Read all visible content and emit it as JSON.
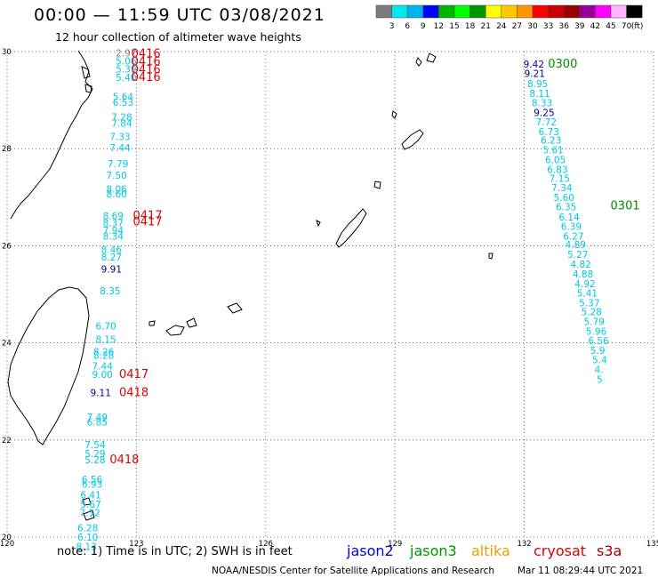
{
  "header": {
    "title": "00:00 — 11:59 UTC 03/08/2021",
    "subtitle": "12 hour collection of altimeter wave heights"
  },
  "legend": {
    "colors": [
      "#7a7a7a",
      "#00e8e8",
      "#00b4f0",
      "#0000ff",
      "#00b400",
      "#00ff00",
      "#009600",
      "#ffff00",
      "#ffc800",
      "#ff9600",
      "#ff0000",
      "#c80000",
      "#960000",
      "#960096",
      "#ff00ff",
      "#ffb4ff",
      "#000000"
    ],
    "labels": [
      "3",
      "6",
      "9",
      "12",
      "15",
      "18",
      "21",
      "24",
      "27",
      "30",
      "33",
      "36",
      "39",
      "42",
      "45",
      "70"
    ],
    "unit": "(ft)"
  },
  "axes": {
    "lon_ticks": [
      "120",
      "123",
      "126",
      "129",
      "132",
      "135"
    ],
    "lat_ticks": [
      "30",
      "28",
      "26",
      "24",
      "22",
      "20"
    ]
  },
  "palette": {
    "cyan": "#00c8e6",
    "navy": "#0000a0",
    "red": "#e00000",
    "green": "#008c00",
    "orange": "#e6a000",
    "darkred": "#aa0000"
  },
  "observations": [
    {
      "lat": 29.9,
      "lon": 122.52,
      "v": "2.97",
      "c": "gray"
    },
    {
      "lat": 29.73,
      "lon": 122.52,
      "v": "5.06",
      "c": "cyan"
    },
    {
      "lat": 29.57,
      "lon": 122.52,
      "v": "5.39",
      "c": "cyan"
    },
    {
      "lat": 29.4,
      "lon": 122.52,
      "v": "5.40",
      "c": "cyan"
    },
    {
      "lat": 29.0,
      "lon": 122.45,
      "v": "5.64",
      "c": "cyan"
    },
    {
      "lat": 28.88,
      "lon": 122.45,
      "v": "6.53",
      "c": "cyan"
    },
    {
      "lat": 28.58,
      "lon": 122.42,
      "v": "7.28",
      "c": "cyan"
    },
    {
      "lat": 28.45,
      "lon": 122.42,
      "v": "7.84",
      "c": "cyan"
    },
    {
      "lat": 28.18,
      "lon": 122.38,
      "v": "7.33",
      "c": "cyan"
    },
    {
      "lat": 27.95,
      "lon": 122.38,
      "v": "7.44",
      "c": "cyan"
    },
    {
      "lat": 27.62,
      "lon": 122.33,
      "v": "7.79",
      "c": "cyan"
    },
    {
      "lat": 27.38,
      "lon": 122.3,
      "v": "7.50",
      "c": "cyan"
    },
    {
      "lat": 27.1,
      "lon": 122.3,
      "v": "8.06",
      "c": "cyan"
    },
    {
      "lat": 27.0,
      "lon": 122.3,
      "v": "8.60",
      "c": "cyan"
    },
    {
      "lat": 26.55,
      "lon": 122.22,
      "v": "8.69",
      "c": "cyan"
    },
    {
      "lat": 26.4,
      "lon": 122.22,
      "v": "8.37",
      "c": "cyan"
    },
    {
      "lat": 26.25,
      "lon": 122.22,
      "v": "7.94",
      "c": "cyan"
    },
    {
      "lat": 26.13,
      "lon": 122.22,
      "v": "8.34",
      "c": "cyan"
    },
    {
      "lat": 25.85,
      "lon": 122.18,
      "v": "8.46",
      "c": "cyan"
    },
    {
      "lat": 25.7,
      "lon": 122.18,
      "v": "8.27",
      "c": "cyan"
    },
    {
      "lat": 25.45,
      "lon": 122.18,
      "v": "9.91",
      "c": "navy"
    },
    {
      "lat": 25.0,
      "lon": 122.15,
      "v": "8.35",
      "c": "cyan"
    },
    {
      "lat": 24.28,
      "lon": 122.05,
      "v": "6.70",
      "c": "cyan"
    },
    {
      "lat": 24.0,
      "lon": 122.05,
      "v": "8.15",
      "c": "cyan"
    },
    {
      "lat": 23.75,
      "lon": 122.0,
      "v": "8.26",
      "c": "cyan"
    },
    {
      "lat": 23.67,
      "lon": 122.0,
      "v": "8.28",
      "c": "cyan"
    },
    {
      "lat": 23.45,
      "lon": 121.97,
      "v": "7.44",
      "c": "cyan"
    },
    {
      "lat": 23.28,
      "lon": 121.97,
      "v": "9.00",
      "c": "cyan"
    },
    {
      "lat": 22.9,
      "lon": 121.93,
      "v": "9.11",
      "c": "navy"
    },
    {
      "lat": 22.4,
      "lon": 121.85,
      "v": "7.49",
      "c": "cyan"
    },
    {
      "lat": 22.3,
      "lon": 121.85,
      "v": "6.85",
      "c": "cyan"
    },
    {
      "lat": 21.83,
      "lon": 121.8,
      "v": "7.54",
      "c": "cyan"
    },
    {
      "lat": 21.65,
      "lon": 121.8,
      "v": "5.29",
      "c": "cyan"
    },
    {
      "lat": 21.52,
      "lon": 121.8,
      "v": "5.28",
      "c": "cyan"
    },
    {
      "lat": 21.12,
      "lon": 121.73,
      "v": "6.56",
      "c": "cyan"
    },
    {
      "lat": 21.02,
      "lon": 121.73,
      "v": "6.93",
      "c": "cyan"
    },
    {
      "lat": 20.8,
      "lon": 121.7,
      "v": "6.41",
      "c": "cyan"
    },
    {
      "lat": 20.6,
      "lon": 121.7,
      "v": "5.67",
      "c": "cyan"
    },
    {
      "lat": 20.43,
      "lon": 121.68,
      "v": "7.12",
      "c": "cyan"
    },
    {
      "lat": 20.12,
      "lon": 121.63,
      "v": "6.28",
      "c": "cyan"
    },
    {
      "lat": 19.93,
      "lon": 121.63,
      "v": "6.10",
      "c": "cyan"
    },
    {
      "lat": 19.73,
      "lon": 121.6,
      "v": "8.13",
      "c": "cyan"
    },
    {
      "lat": 29.67,
      "lon": 131.98,
      "v": "9.42",
      "c": "navy"
    },
    {
      "lat": 29.48,
      "lon": 132.0,
      "v": "9.21",
      "c": "navy"
    },
    {
      "lat": 29.27,
      "lon": 132.07,
      "v": "8.95",
      "c": "cyan"
    },
    {
      "lat": 29.07,
      "lon": 132.12,
      "v": "8.11",
      "c": "cyan"
    },
    {
      "lat": 28.87,
      "lon": 132.17,
      "v": "8.33",
      "c": "cyan"
    },
    {
      "lat": 28.67,
      "lon": 132.22,
      "v": "9.25",
      "c": "navy"
    },
    {
      "lat": 28.48,
      "lon": 132.27,
      "v": "7.72",
      "c": "cyan"
    },
    {
      "lat": 28.28,
      "lon": 132.33,
      "v": "6.73",
      "c": "cyan"
    },
    {
      "lat": 28.1,
      "lon": 132.38,
      "v": "6.23",
      "c": "cyan"
    },
    {
      "lat": 27.9,
      "lon": 132.43,
      "v": "5.61",
      "c": "cyan"
    },
    {
      "lat": 27.7,
      "lon": 132.48,
      "v": "6.05",
      "c": "cyan"
    },
    {
      "lat": 27.5,
      "lon": 132.53,
      "v": "6.83",
      "c": "cyan"
    },
    {
      "lat": 27.32,
      "lon": 132.58,
      "v": "7.15",
      "c": "cyan"
    },
    {
      "lat": 27.12,
      "lon": 132.63,
      "v": "7.34",
      "c": "cyan"
    },
    {
      "lat": 26.92,
      "lon": 132.68,
      "v": "5.60",
      "c": "cyan"
    },
    {
      "lat": 26.73,
      "lon": 132.73,
      "v": "6.35",
      "c": "cyan"
    },
    {
      "lat": 26.52,
      "lon": 132.8,
      "v": "6.14",
      "c": "cyan"
    },
    {
      "lat": 26.33,
      "lon": 132.85,
      "v": "6.39",
      "c": "cyan"
    },
    {
      "lat": 26.13,
      "lon": 132.9,
      "v": "6.27",
      "c": "cyan"
    },
    {
      "lat": 25.95,
      "lon": 132.95,
      "v": "4.89",
      "c": "cyan"
    },
    {
      "lat": 25.75,
      "lon": 133.0,
      "v": "5.27",
      "c": "cyan"
    },
    {
      "lat": 25.55,
      "lon": 133.07,
      "v": "4.82",
      "c": "cyan"
    },
    {
      "lat": 25.35,
      "lon": 133.12,
      "v": "4.88",
      "c": "cyan"
    },
    {
      "lat": 25.15,
      "lon": 133.17,
      "v": "4.92",
      "c": "cyan"
    },
    {
      "lat": 24.95,
      "lon": 133.22,
      "v": "5.41",
      "c": "cyan"
    },
    {
      "lat": 24.75,
      "lon": 133.27,
      "v": "5.37",
      "c": "cyan"
    },
    {
      "lat": 24.57,
      "lon": 133.32,
      "v": "5.28",
      "c": "cyan"
    },
    {
      "lat": 24.37,
      "lon": 133.38,
      "v": "5.79",
      "c": "cyan"
    },
    {
      "lat": 24.17,
      "lon": 133.43,
      "v": "5.96",
      "c": "cyan"
    },
    {
      "lat": 23.97,
      "lon": 133.48,
      "v": "6.56",
      "c": "cyan"
    },
    {
      "lat": 23.77,
      "lon": 133.53,
      "v": "5.9",
      "c": "cyan"
    },
    {
      "lat": 23.58,
      "lon": 133.58,
      "v": "5.4",
      "c": "cyan"
    },
    {
      "lat": 23.38,
      "lon": 133.63,
      "v": "4.",
      "c": "cyan"
    },
    {
      "lat": 23.18,
      "lon": 133.68,
      "v": "5",
      "c": "cyan"
    }
  ],
  "times": [
    {
      "lat": 29.88,
      "lon": 122.88,
      "v": "0416",
      "c": "red"
    },
    {
      "lat": 29.72,
      "lon": 122.88,
      "v": "0416",
      "c": "red"
    },
    {
      "lat": 29.55,
      "lon": 122.88,
      "v": "0416",
      "c": "red"
    },
    {
      "lat": 29.4,
      "lon": 122.88,
      "v": "0416",
      "c": "red"
    },
    {
      "lat": 26.55,
      "lon": 122.92,
      "v": "0417",
      "c": "red"
    },
    {
      "lat": 26.42,
      "lon": 122.92,
      "v": "0417",
      "c": "red"
    },
    {
      "lat": 23.28,
      "lon": 122.6,
      "v": "0417",
      "c": "red"
    },
    {
      "lat": 22.9,
      "lon": 122.6,
      "v": "0418",
      "c": "red"
    },
    {
      "lat": 21.52,
      "lon": 122.38,
      "v": "0418",
      "c": "red"
    },
    {
      "lat": 29.67,
      "lon": 132.55,
      "v": "0300",
      "c": "green"
    },
    {
      "lat": 26.75,
      "lon": 134.0,
      "v": "0301",
      "c": "green"
    }
  ],
  "note": "note: 1) Time is in UTC; 2) SWH is in feet",
  "satellites": [
    {
      "name": "jason2",
      "color": "#0000e0"
    },
    {
      "name": "jason3",
      "color": "#009600"
    },
    {
      "name": "altika",
      "color": "#e6a000"
    },
    {
      "name": "cryosat",
      "color": "#e00000"
    },
    {
      "name": "s3a",
      "color": "#aa0000"
    }
  ],
  "footer": {
    "credit": "NOAA/NESDIS Center for Satellite Applications and Research",
    "timestamp": "Mar 11 08:29:44 UTC 2021"
  }
}
